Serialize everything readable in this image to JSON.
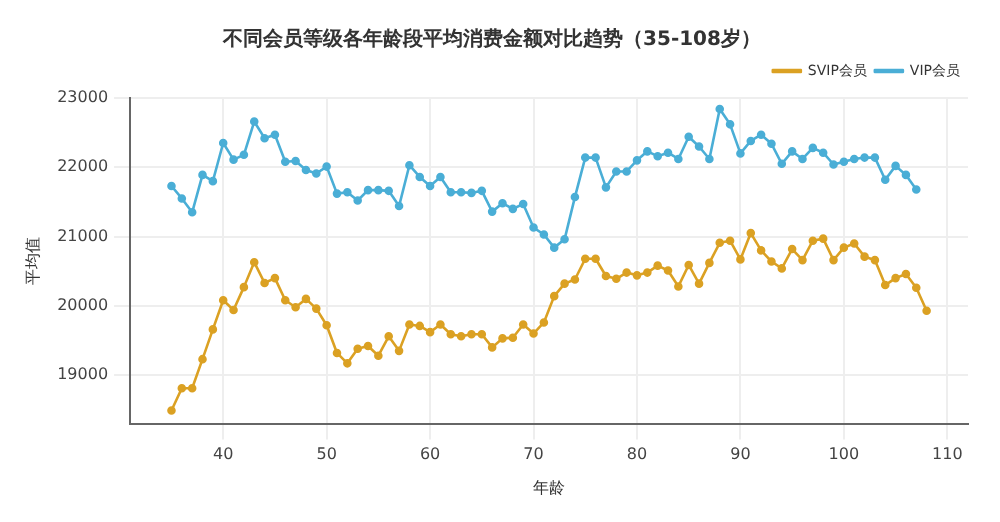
{
  "chart_data": {
    "type": "line",
    "title": "不同会员等级各年龄段平均消费金额对比趋势（35-108岁）",
    "xlabel": "年龄",
    "ylabel": "平均值",
    "x": [
      35,
      36,
      37,
      38,
      39,
      40,
      41,
      42,
      43,
      44,
      45,
      46,
      47,
      48,
      49,
      50,
      51,
      52,
      53,
      54,
      55,
      56,
      57,
      58,
      59,
      60,
      61,
      62,
      63,
      64,
      65,
      66,
      67,
      68,
      69,
      70,
      71,
      72,
      73,
      74,
      75,
      76,
      77,
      78,
      79,
      80,
      81,
      82,
      83,
      84,
      85,
      86,
      87,
      88,
      89,
      90,
      91,
      92,
      93,
      94,
      95,
      96,
      97,
      98,
      99,
      100,
      101,
      102,
      103,
      104,
      105,
      106,
      107,
      108
    ],
    "series": [
      {
        "name": "SVIP会员",
        "color": "#dba123",
        "values": [
          18490,
          18810,
          18810,
          19230,
          19660,
          20080,
          19940,
          20270,
          20630,
          20330,
          20400,
          20080,
          19980,
          20100,
          19960,
          19720,
          19320,
          19170,
          19380,
          19420,
          19280,
          19560,
          19350,
          19730,
          19710,
          19620,
          19730,
          19590,
          19560,
          19590,
          19590,
          19400,
          19530,
          19540,
          19730,
          19600,
          19760,
          20140,
          20320,
          20380,
          20680,
          20680,
          20430,
          20390,
          20480,
          20440,
          20480,
          20580,
          20510,
          20280,
          20590,
          20320,
          20620,
          20910,
          20940,
          20670,
          21050,
          20800,
          20640,
          20540,
          20820,
          20660,
          20940,
          20970,
          20660,
          20840,
          20900,
          20710,
          20660,
          20300,
          20400,
          20460,
          20260,
          19930
        ]
      },
      {
        "name": "VIP会员",
        "color": "#4aaed6",
        "values": [
          21730,
          21550,
          21350,
          21890,
          21800,
          22350,
          22110,
          22180,
          22660,
          22420,
          22470,
          22080,
          22090,
          21960,
          21910,
          22010,
          21620,
          21640,
          21520,
          21670,
          21670,
          21660,
          21440,
          22030,
          21860,
          21730,
          21860,
          21640,
          21640,
          21630,
          21660,
          21360,
          21480,
          21400,
          21470,
          21130,
          21030,
          20840,
          20960,
          21570,
          22140,
          22140,
          21710,
          21940,
          21940,
          22100,
          22230,
          22160,
          22210,
          22120,
          22440,
          22300,
          22120,
          22840,
          22620,
          22200,
          22380,
          22470,
          22340,
          22050,
          22230,
          22120,
          22280,
          22210,
          22040,
          22080,
          22120,
          22140,
          22140,
          21820,
          22020,
          21890,
          21680,
          null
        ]
      }
    ],
    "xlim": [
      31,
      112
    ],
    "xticks": [
      40,
      50,
      60,
      70,
      80,
      90,
      100,
      110
    ],
    "ylim": [
      18300,
      23000
    ],
    "yticks": [
      19000,
      20000,
      21000,
      22000,
      23000
    ],
    "grid": true,
    "legend": "top right",
    "marker": "circle",
    "line_style": "solid"
  }
}
